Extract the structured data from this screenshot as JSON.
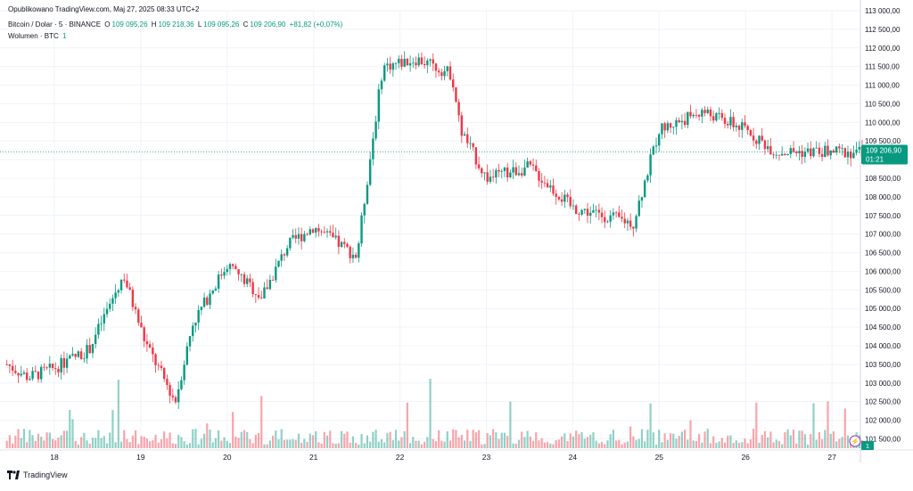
{
  "published": "Opublikowano TradingView.com, Maj 27, 2025 08:33 UTC+2",
  "header": {
    "symbol": "Bitcoin / Dolar · 5 · BINANCE",
    "open_label": "O",
    "open": "109 095,26",
    "high_label": "H",
    "high": "109 218,36",
    "low_label": "L",
    "low": "109 095,26",
    "close_label": "C",
    "close": "109 206,90",
    "change": "+81,82 (+0,07%)",
    "volume_label": "Wolumen · BTC",
    "volume_value": "1"
  },
  "price_tag": {
    "price": "109 206,90",
    "countdown": "01:21"
  },
  "volume_tag": "1",
  "branding": "TradingView",
  "colors": {
    "up": "#089981",
    "down": "#f23645",
    "grid": "#f0f3fa"
  },
  "chart_data": {
    "type": "candlestick",
    "interval": "5",
    "y_ticks": [
      "113 000,00",
      "112 500,00",
      "112 000,00",
      "111 500,00",
      "111 000,00",
      "110 500,00",
      "110 000,00",
      "109 500,00",
      "109 000,00",
      "108 500,00",
      "108 000,00",
      "107 500,00",
      "107 000,00",
      "106 500,00",
      "106 000,00",
      "105 500,00",
      "105 000,00",
      "104 500,00",
      "104 000,00",
      "103 500,00",
      "103 000,00",
      "102 500,00",
      "102 000,00",
      "101 500,00"
    ],
    "x_ticks": [
      "18",
      "19",
      "20",
      "21",
      "22",
      "23",
      "24",
      "25",
      "26",
      "27"
    ],
    "ylim": [
      101200,
      113000
    ],
    "x": [
      0,
      0.5,
      1,
      1.5,
      2,
      2.5,
      3,
      3.5,
      4,
      4.5,
      5,
      5.5,
      6,
      6.5,
      7,
      7.5,
      8,
      8.5,
      9,
      9.5,
      9.85
    ],
    "close_path": [
      103500,
      103150,
      103400,
      103900,
      105900,
      104100,
      102500,
      104600,
      106200,
      105300,
      106700,
      107200,
      106400,
      111500,
      111700,
      111300,
      109800,
      108500,
      108800,
      107700,
      107300,
      109800,
      110300,
      109800,
      109207
    ],
    "close_x": [
      -0.55,
      -0.3,
      0.0,
      0.4,
      0.8,
      1.05,
      1.4,
      1.6,
      2.0,
      2.4,
      2.7,
      3.0,
      3.5,
      3.8,
      4.2,
      4.6,
      4.7,
      5.0,
      5.5,
      6.0,
      6.7,
      7.0,
      7.5,
      8.0,
      8.35
    ]
  }
}
